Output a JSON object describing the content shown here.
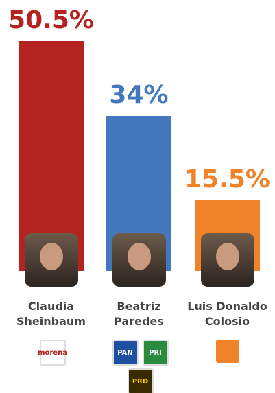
{
  "chart_data": {
    "type": "bar",
    "categories": [
      "Claudia Sheinbaum",
      "Beatriz Paredes",
      "Luis Donaldo Colosio"
    ],
    "values": [
      50.5,
      34,
      15.5
    ],
    "value_labels": [
      "50.5%",
      "34%",
      "15.5%"
    ],
    "colors": [
      "#b3231f",
      "#4378be",
      "#f0822a"
    ]
  },
  "party_logos": [
    [
      "morena"
    ],
    [
      "PAN",
      "PRI",
      "PRD"
    ],
    []
  ]
}
